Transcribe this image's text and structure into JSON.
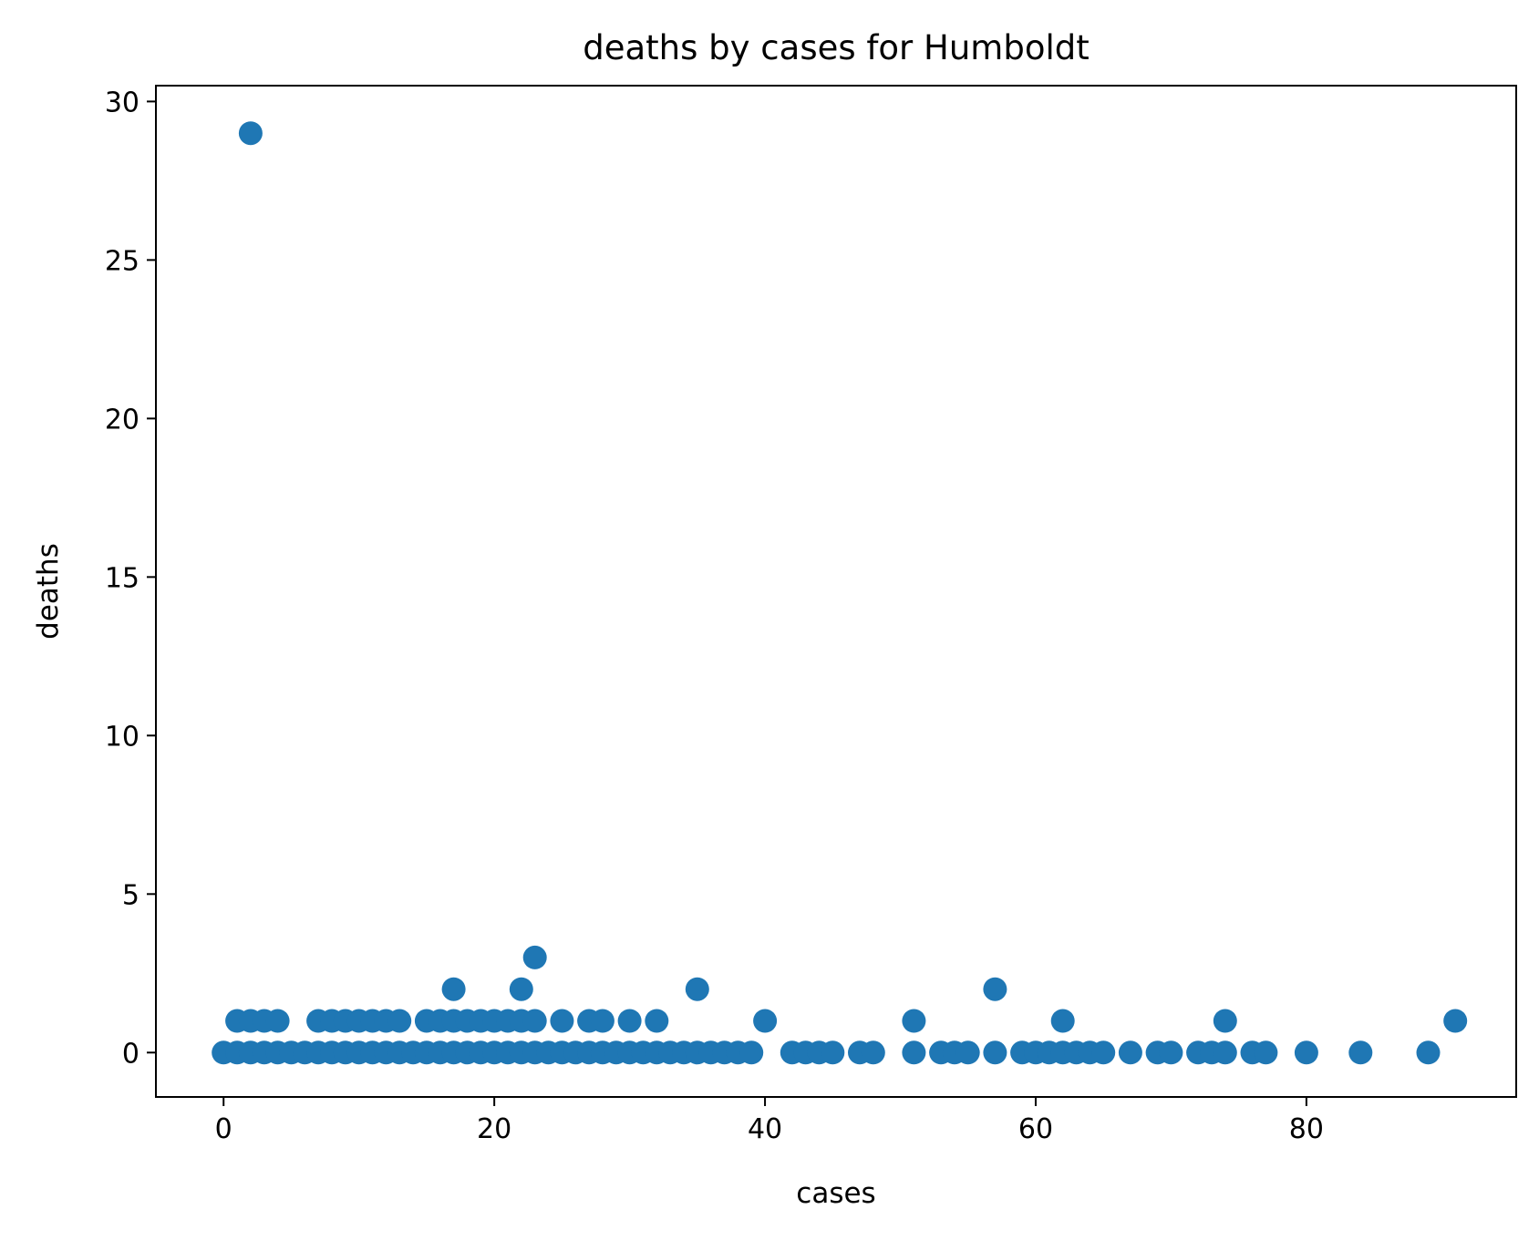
{
  "chart_data": {
    "type": "scatter",
    "title": "deaths by cases for Humboldt",
    "xlabel": "cases",
    "ylabel": "deaths",
    "xlim": [
      -5,
      95.5
    ],
    "ylim": [
      -1.4,
      30.5
    ],
    "xticks": [
      0,
      20,
      40,
      60,
      80
    ],
    "yticks": [
      0,
      5,
      10,
      15,
      20,
      25,
      30
    ],
    "grid": false,
    "legend": "none",
    "marker_color": "#1f77b4",
    "points": [
      [
        2,
        29
      ],
      [
        1,
        1
      ],
      [
        2,
        1
      ],
      [
        3,
        1
      ],
      [
        4,
        1
      ],
      [
        7,
        1
      ],
      [
        8,
        1
      ],
      [
        9,
        1
      ],
      [
        10,
        1
      ],
      [
        11,
        1
      ],
      [
        12,
        1
      ],
      [
        13,
        1
      ],
      [
        15,
        1
      ],
      [
        16,
        1
      ],
      [
        17,
        1
      ],
      [
        18,
        1
      ],
      [
        19,
        1
      ],
      [
        20,
        1
      ],
      [
        21,
        1
      ],
      [
        22,
        1
      ],
      [
        23,
        1
      ],
      [
        25,
        1
      ],
      [
        27,
        1
      ],
      [
        28,
        1
      ],
      [
        30,
        1
      ],
      [
        32,
        1
      ],
      [
        40,
        1
      ],
      [
        51,
        1
      ],
      [
        62,
        1
      ],
      [
        74,
        1
      ],
      [
        91,
        1
      ],
      [
        17,
        2
      ],
      [
        22,
        2
      ],
      [
        35,
        2
      ],
      [
        57,
        2
      ],
      [
        23,
        3
      ],
      [
        0,
        0
      ],
      [
        1,
        0
      ],
      [
        2,
        0
      ],
      [
        3,
        0
      ],
      [
        4,
        0
      ],
      [
        5,
        0
      ],
      [
        6,
        0
      ],
      [
        7,
        0
      ],
      [
        8,
        0
      ],
      [
        9,
        0
      ],
      [
        10,
        0
      ],
      [
        11,
        0
      ],
      [
        12,
        0
      ],
      [
        13,
        0
      ],
      [
        14,
        0
      ],
      [
        15,
        0
      ],
      [
        16,
        0
      ],
      [
        17,
        0
      ],
      [
        18,
        0
      ],
      [
        19,
        0
      ],
      [
        20,
        0
      ],
      [
        21,
        0
      ],
      [
        22,
        0
      ],
      [
        23,
        0
      ],
      [
        24,
        0
      ],
      [
        25,
        0
      ],
      [
        26,
        0
      ],
      [
        27,
        0
      ],
      [
        28,
        0
      ],
      [
        29,
        0
      ],
      [
        30,
        0
      ],
      [
        31,
        0
      ],
      [
        32,
        0
      ],
      [
        33,
        0
      ],
      [
        34,
        0
      ],
      [
        35,
        0
      ],
      [
        36,
        0
      ],
      [
        37,
        0
      ],
      [
        38,
        0
      ],
      [
        39,
        0
      ],
      [
        42,
        0
      ],
      [
        43,
        0
      ],
      [
        44,
        0
      ],
      [
        45,
        0
      ],
      [
        47,
        0
      ],
      [
        48,
        0
      ],
      [
        51,
        0
      ],
      [
        53,
        0
      ],
      [
        54,
        0
      ],
      [
        55,
        0
      ],
      [
        57,
        0
      ],
      [
        59,
        0
      ],
      [
        60,
        0
      ],
      [
        61,
        0
      ],
      [
        62,
        0
      ],
      [
        63,
        0
      ],
      [
        64,
        0
      ],
      [
        65,
        0
      ],
      [
        67,
        0
      ],
      [
        69,
        0
      ],
      [
        70,
        0
      ],
      [
        72,
        0
      ],
      [
        73,
        0
      ],
      [
        74,
        0
      ],
      [
        76,
        0
      ],
      [
        77,
        0
      ],
      [
        80,
        0
      ],
      [
        84,
        0
      ],
      [
        89,
        0
      ]
    ]
  }
}
